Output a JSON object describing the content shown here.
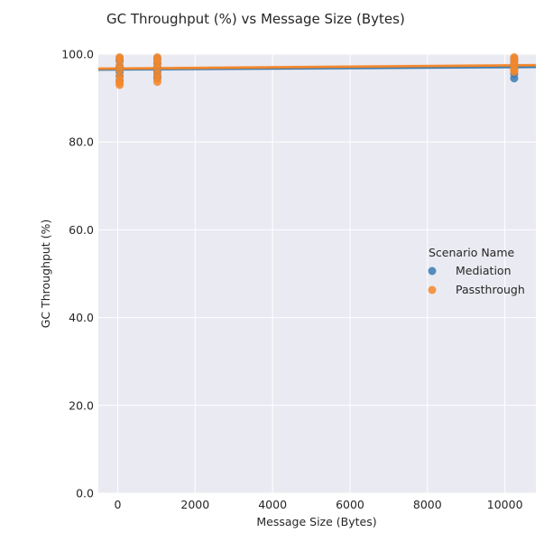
{
  "chart_data": {
    "type": "scatter",
    "title": "GC Throughput (%) vs Message Size (Bytes)",
    "xlabel": "Message Size (Bytes)",
    "ylabel": "GC Throughput (%)",
    "xlim": [
      -500,
      10800
    ],
    "ylim": [
      0,
      100
    ],
    "xticks": [
      0,
      2000,
      4000,
      6000,
      8000,
      10000
    ],
    "xtick_labels": [
      "0",
      "2000",
      "4000",
      "6000",
      "8000",
      "10000"
    ],
    "yticks": [
      0,
      20,
      40,
      60,
      80,
      100
    ],
    "ytick_labels": [
      "0.0",
      "20.0",
      "40.0",
      "60.0",
      "80.0",
      "100.0"
    ],
    "grid": true,
    "background": "#eaeaf2",
    "legend": {
      "title": "Scenario Name",
      "placement": "center-right"
    },
    "series": [
      {
        "name": "Mediation",
        "color": "#3a7db3",
        "x": [
          50,
          50,
          50,
          50,
          50,
          50,
          1024,
          1024,
          1024,
          1024,
          1024,
          1024,
          10240,
          10240,
          10240,
          10240,
          10240,
          10240
        ],
        "y": [
          99.0,
          98.5,
          97.0,
          96.0,
          95.0,
          94.0,
          99.0,
          98.0,
          97.0,
          96.0,
          95.0,
          94.5,
          99.0,
          98.5,
          97.5,
          96.5,
          95.5,
          94.5
        ],
        "fit": {
          "x": [
            -500,
            10800
          ],
          "y": [
            96.5,
            97.1
          ]
        }
      },
      {
        "name": "Passthrough",
        "color": "#f5872a",
        "x": [
          50,
          50,
          50,
          50,
          50,
          50,
          50,
          50,
          1024,
          1024,
          1024,
          1024,
          1024,
          1024,
          1024,
          10240,
          10240,
          10240,
          10240,
          10240,
          10240
        ],
        "y": [
          99.3,
          98.8,
          97.5,
          96.5,
          95.0,
          94.0,
          93.5,
          93.0,
          99.3,
          98.7,
          97.8,
          96.8,
          95.5,
          94.5,
          93.7,
          99.3,
          98.8,
          98.0,
          97.2,
          96.5,
          96.0
        ],
        "fit": {
          "x": [
            -500,
            10800
          ],
          "y": [
            96.7,
            97.5
          ]
        }
      }
    ]
  }
}
